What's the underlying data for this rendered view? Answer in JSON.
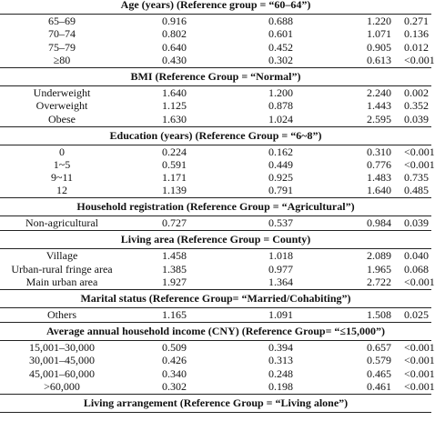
{
  "table": {
    "sections": [
      {
        "title": "Age (years) (Reference group = “60–64”)",
        "rows": [
          [
            "65–69",
            "0.916",
            "0.688",
            "1.220",
            "0.271"
          ],
          [
            "70–74",
            "0.802",
            "0.601",
            "1.071",
            "0.136"
          ],
          [
            "75–79",
            "0.640",
            "0.452",
            "0.905",
            "0.012"
          ],
          [
            "≥80",
            "0.430",
            "0.302",
            "0.613",
            "<0.001"
          ]
        ]
      },
      {
        "title": "BMI (Reference Group = “Normal”)",
        "rows": [
          [
            "Underweight",
            "1.640",
            "1.200",
            "2.240",
            "0.002"
          ],
          [
            "Overweight",
            "1.125",
            "0.878",
            "1.443",
            "0.352"
          ],
          [
            "Obese",
            "1.630",
            "1.024",
            "2.595",
            "0.039"
          ]
        ]
      },
      {
        "title": "Education (years) (Reference Group = “6~8”)",
        "rows": [
          [
            "0",
            "0.224",
            "0.162",
            "0.310",
            "<0.001"
          ],
          [
            "1~5",
            "0.591",
            "0.449",
            "0.776",
            "<0.001"
          ],
          [
            "9~11",
            "1.171",
            "0.925",
            "1.483",
            "0.735"
          ],
          [
            "12",
            "1.139",
            "0.791",
            "1.640",
            "0.485"
          ]
        ]
      },
      {
        "title": "Household registration (Reference Group = “Agricultural”)",
        "rows": [
          [
            "Non-agricultural",
            "0.727",
            "0.537",
            "0.984",
            "0.039"
          ]
        ]
      },
      {
        "title": "Living area (Reference Group = County)",
        "rows": [
          [
            "Village",
            "1.458",
            "1.018",
            "2.089",
            "0.040"
          ],
          [
            "Urban-rural fringe area",
            "1.385",
            "0.977",
            "1.965",
            "0.068"
          ],
          [
            "Main urban area",
            "1.927",
            "1.364",
            "2.722",
            "<0.001"
          ]
        ]
      },
      {
        "title": "Marital status (Reference Group= “Married/Cohabiting”)",
        "rows": [
          [
            "Others",
            "1.165",
            "1.091",
            "1.508",
            "0.025"
          ]
        ]
      },
      {
        "title": "Average annual household income (CNY) (Reference Group= “≤15,000”)",
        "rows": [
          [
            "15,001–30,000",
            "0.509",
            "0.394",
            "0.657",
            "<0.001"
          ],
          [
            "30,001–45,000",
            "0.426",
            "0.313",
            "0.579",
            "<0.001"
          ],
          [
            "45,001–60,000",
            "0.340",
            "0.248",
            "0.465",
            "<0.001"
          ],
          [
            ">60,000",
            "0.302",
            "0.198",
            "0.461",
            "<0.001"
          ]
        ]
      },
      {
        "title": "Living arrangement (Reference Group = “Living alone”)",
        "rows": []
      }
    ]
  }
}
